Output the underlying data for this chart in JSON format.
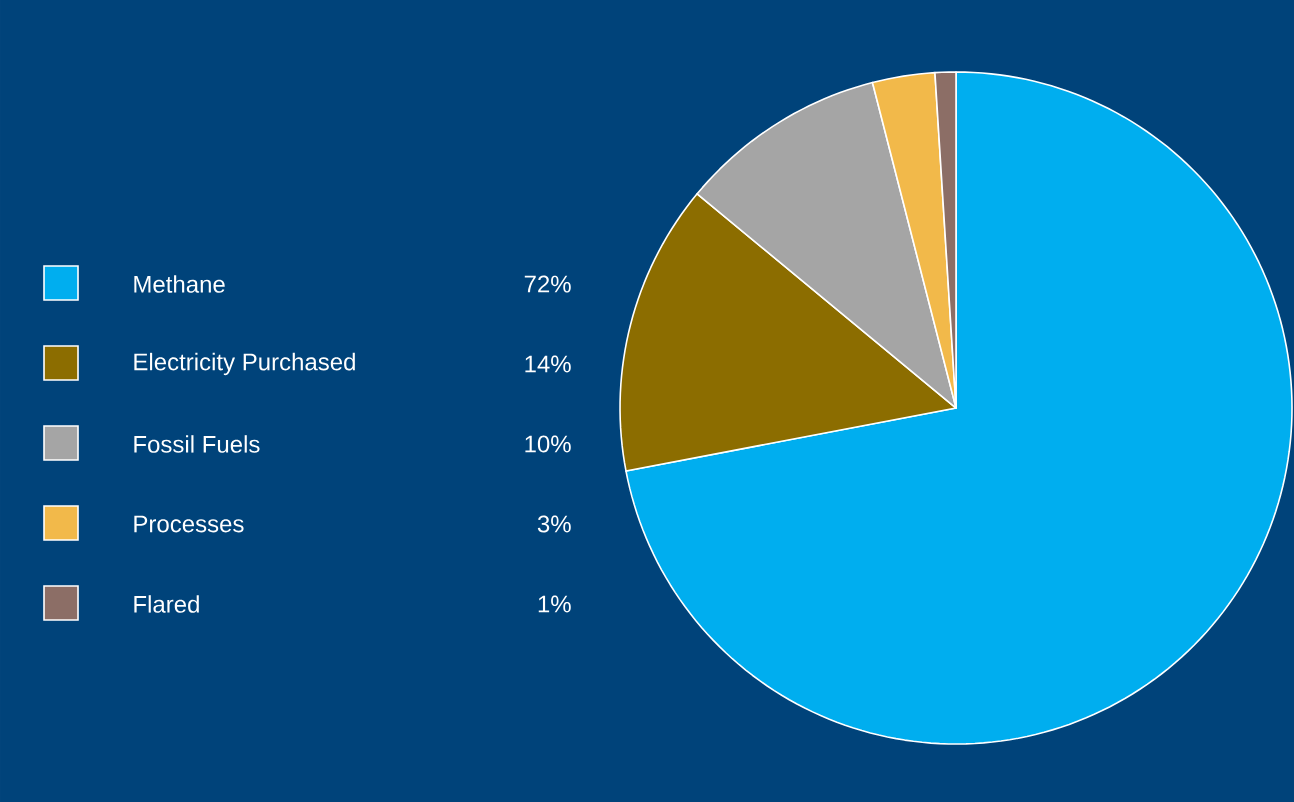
{
  "chart_data": {
    "type": "pie",
    "categories": [
      "Methane",
      "Electricity Purchased",
      "Fossil Fuels",
      "Processes",
      "Flared"
    ],
    "values": [
      72,
      14,
      10,
      3,
      1
    ],
    "value_labels": [
      "72%",
      "14%",
      "10%",
      "3%",
      "1%"
    ],
    "colors": [
      "#00aeef",
      "#8c6d00",
      "#a5a5a5",
      "#f2b94a",
      "#8c6e66"
    ],
    "legend": "left"
  }
}
